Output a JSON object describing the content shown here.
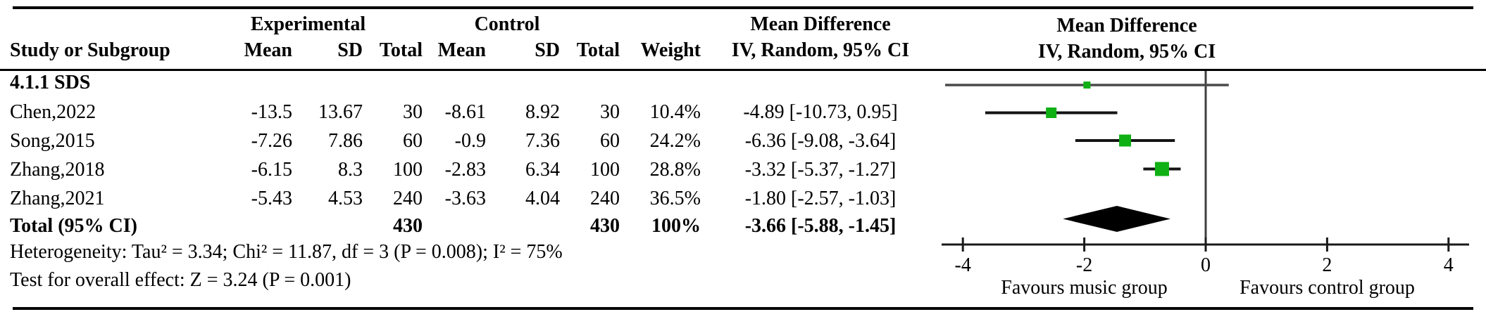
{
  "figure": {
    "left_header": {
      "experimental": "Experimental",
      "control": "Control",
      "mean_difference": "Mean Difference",
      "columns": {
        "study": "Study or Subgroup",
        "mean": "Mean",
        "sd": "SD",
        "total": "Total",
        "weight": "Weight",
        "iv_random": "IV, Random, 95% CI"
      }
    },
    "right_header": {
      "title": "Mean Difference",
      "subtitle": "IV, Random, 95% CI"
    },
    "subgroup_label": "4.1.1 SDS",
    "rows": [
      {
        "study": "Chen,2022",
        "exp_mean": "-13.5",
        "exp_sd": "13.67",
        "exp_total": "30",
        "ctrl_mean": "-8.61",
        "ctrl_sd": "8.92",
        "ctrl_total": "30",
        "weight": "10.4%",
        "iv": "-4.89 [-10.73, 0.95]"
      },
      {
        "study": "Song,2015",
        "exp_mean": "-7.26",
        "exp_sd": "7.86",
        "exp_total": "60",
        "ctrl_mean": "-0.9",
        "ctrl_sd": "7.36",
        "ctrl_total": "60",
        "weight": "24.2%",
        "iv": "-6.36 [-9.08, -3.64]"
      },
      {
        "study": "Zhang,2018",
        "exp_mean": "-6.15",
        "exp_sd": "8.3",
        "exp_total": "100",
        "ctrl_mean": "-2.83",
        "ctrl_sd": "6.34",
        "ctrl_total": "100",
        "weight": "28.8%",
        "iv": "-3.32 [-5.37, -1.27]"
      },
      {
        "study": "Zhang,2021",
        "exp_mean": "-5.43",
        "exp_sd": "4.53",
        "exp_total": "240",
        "ctrl_mean": "-3.63",
        "ctrl_sd": "4.04",
        "ctrl_total": "240",
        "weight": "36.5%",
        "iv": "-1.80 [-2.57, -1.03]"
      }
    ],
    "total_row": {
      "label": "Total (95% CI)",
      "exp_total": "430",
      "ctrl_total": "430",
      "weight": "100%",
      "iv": "-3.66 [-5.88, -1.45]"
    },
    "footnotes": {
      "heterogeneity": "Heterogeneity: Tau² = 3.34; Chi² = 11.87, df = 3 (P = 0.008); I² = 75%",
      "overall_effect": "Test for overall effect: Z = 3.24 (P = 0.001)"
    },
    "axis_footer": {
      "favours_left": "Favours music group",
      "favours_right": "Favours control group"
    }
  },
  "chart_data": {
    "type": "forest",
    "title": "Mean Difference IV, Random, 95% CI",
    "subgroup": "4.1.1 SDS",
    "studies": [
      {
        "label": "Chen,2022",
        "effect": -4.89,
        "ci_low": -10.73,
        "ci_high": 0.95,
        "weight_pct": 10.4
      },
      {
        "label": "Song,2015",
        "effect": -6.36,
        "ci_low": -9.08,
        "ci_high": -3.64,
        "weight_pct": 24.2
      },
      {
        "label": "Zhang,2018",
        "effect": -3.32,
        "ci_low": -5.37,
        "ci_high": -1.27,
        "weight_pct": 28.8
      },
      {
        "label": "Zhang,2021",
        "effect": -1.8,
        "ci_low": -2.57,
        "ci_high": -1.03,
        "weight_pct": 36.5
      }
    ],
    "total": {
      "label": "Total (95% CI)",
      "effect": -3.66,
      "ci_low": -5.88,
      "ci_high": -1.45,
      "weight_pct": 100
    },
    "heterogeneity": {
      "tau2": 3.34,
      "chi2": 11.87,
      "df": 3,
      "p": 0.008,
      "i2_pct": 75
    },
    "overall_effect": {
      "z": 3.24,
      "p": 0.001
    },
    "axis": {
      "ticks": [
        -4,
        -2,
        0,
        2,
        4
      ],
      "xlim": [
        -4,
        4
      ],
      "favours_left": "Favours music group",
      "favours_right": "Favours control group"
    },
    "plot_scale_divisor": 2.5,
    "colors": {
      "marker": "#0FB014",
      "diamond": "#000000",
      "axis": "#1a1a1a",
      "zero_line": "#3f3f3f"
    }
  }
}
